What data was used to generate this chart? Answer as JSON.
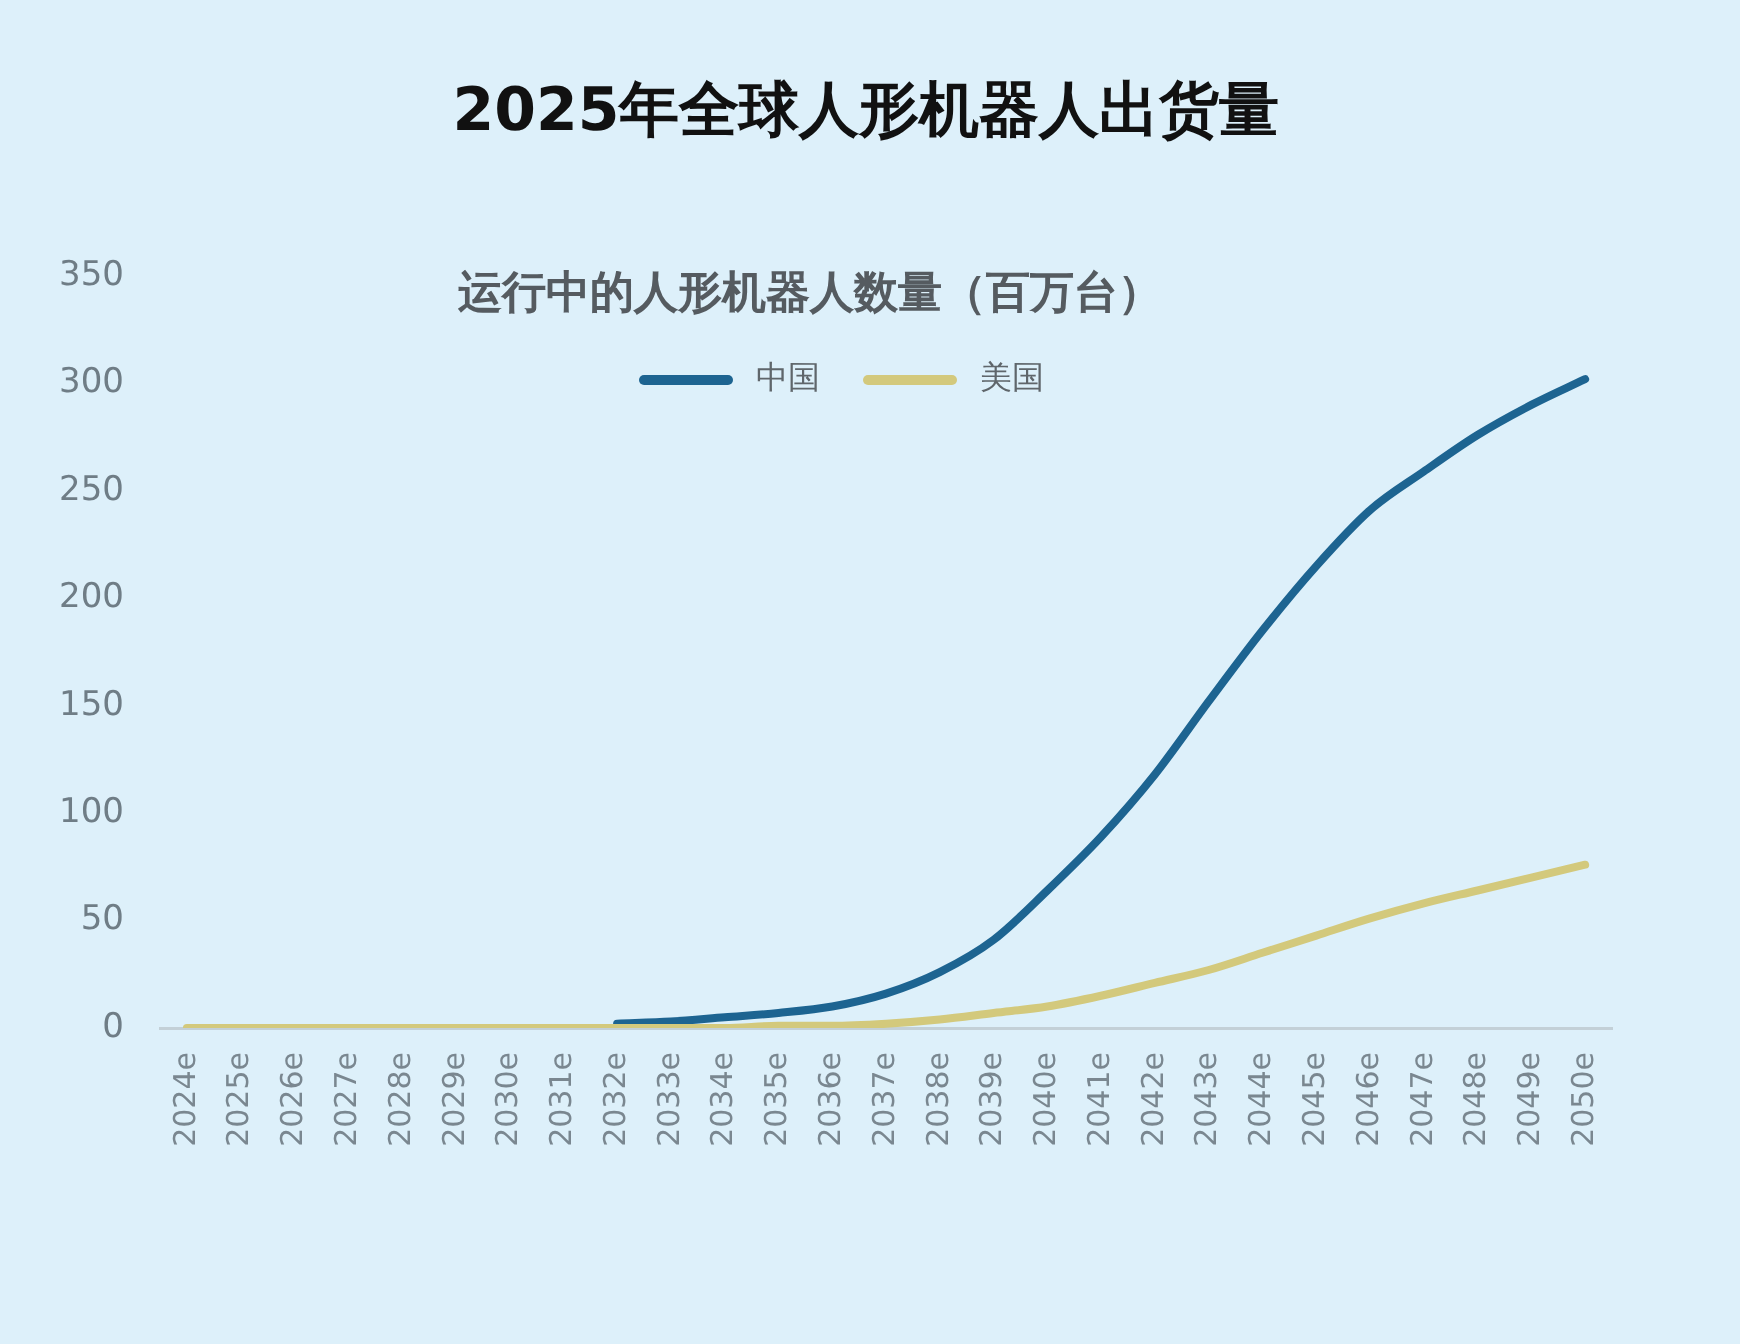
{
  "chart_data": {
    "type": "line",
    "title": "2025年全球人形机器人出货量",
    "subtitle": "运行中的人形机器人数量（百万台）",
    "categories": [
      "2024e",
      "2025e",
      "2026e",
      "2027e",
      "2028e",
      "2029e",
      "2030e",
      "2031e",
      "2032e",
      "2033e",
      "2034e",
      "2035e",
      "2036e",
      "2037e",
      "2038e",
      "2039e",
      "2040e",
      "2041e",
      "2042e",
      "2043e",
      "2044e",
      "2045e",
      "2046e",
      "2047e",
      "2048e",
      "2049e",
      "2050e"
    ],
    "series": [
      {
        "name": "中国",
        "color": "#1d6491",
        "values": [
          null,
          null,
          null,
          null,
          null,
          null,
          null,
          null,
          2,
          3,
          5,
          7,
          10,
          16,
          26,
          41,
          64,
          89,
          118,
          152,
          185,
          215,
          241,
          259,
          276,
          290,
          302
        ]
      },
      {
        "name": "美国",
        "color": "#d3c97c",
        "values": [
          0,
          0,
          0,
          0,
          0,
          0,
          0,
          0,
          0,
          0,
          0,
          1,
          1,
          2,
          4,
          7,
          10,
          15,
          21,
          27,
          35,
          43,
          51,
          58,
          64,
          70,
          76
        ]
      }
    ],
    "ylim": [
      0,
      350
    ],
    "yticks": [
      0,
      50,
      100,
      150,
      200,
      250,
      300,
      350
    ],
    "grid": false,
    "legend": "top",
    "marker": "none",
    "line_style": "solid"
  }
}
